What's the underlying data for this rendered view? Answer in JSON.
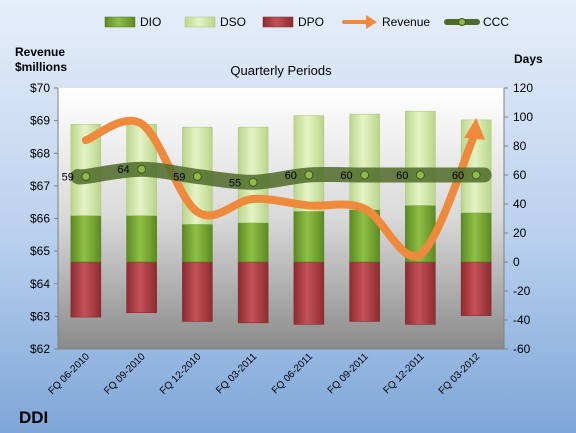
{
  "colors": {
    "dio": "#7aa534",
    "dso": "#d6eba4",
    "dpo": "#b8464b",
    "revenue": "#ef8a3c",
    "ccc_band": "#4f6b29",
    "ccc_marker": "#93b84c",
    "bg_top": "#dbe8f7",
    "bg_bottom": "#7fa7d9"
  },
  "chart_data": {
    "type": "bar",
    "title": "Quarterly Periods",
    "company": "DDI",
    "y_left_label_line1": "Revenue",
    "y_left_label_line2": "$millions",
    "y_right_label": "Days",
    "y_left_range": [
      62,
      70
    ],
    "y_left_ticks": [
      "$62",
      "$63",
      "$64",
      "$65",
      "$66",
      "$67",
      "$68",
      "$69",
      "$70"
    ],
    "y_right_range": [
      -60,
      120
    ],
    "y_right_ticks": [
      "-60",
      "-40",
      "-20",
      "0",
      "20",
      "40",
      "60",
      "80",
      "100",
      "120"
    ],
    "legend": [
      "DIO",
      "DSO",
      "DPO",
      "Revenue",
      "CCC"
    ],
    "legend_position": "top",
    "categories": [
      "FQ 06-2010",
      "FQ 09-2010",
      "FQ 12-2010",
      "FQ 03-2011",
      "FQ 06-2011",
      "FQ 09-2011",
      "FQ 12-2011",
      "FQ 03-2012"
    ],
    "series": [
      {
        "name": "DIO",
        "values": [
          32,
          32,
          26,
          27,
          35,
          36,
          39,
          34
        ]
      },
      {
        "name": "DSO",
        "values": [
          63,
          63,
          67,
          66,
          66,
          66,
          65,
          64
        ]
      },
      {
        "name": "DPO",
        "values": [
          -38,
          -35,
          -41,
          -42,
          -43,
          -41,
          -43,
          -37
        ]
      },
      {
        "name": "Revenue",
        "values": [
          68.4,
          68.9,
          66.2,
          66.6,
          66.4,
          66.3,
          64.9,
          68.9
        ]
      },
      {
        "name": "CCC",
        "values": [
          59,
          64,
          59,
          55,
          60,
          60,
          60,
          60
        ]
      }
    ],
    "ccc_labels": [
      "59",
      "64",
      "59",
      "55",
      "60",
      "60",
      "60",
      "60"
    ]
  }
}
